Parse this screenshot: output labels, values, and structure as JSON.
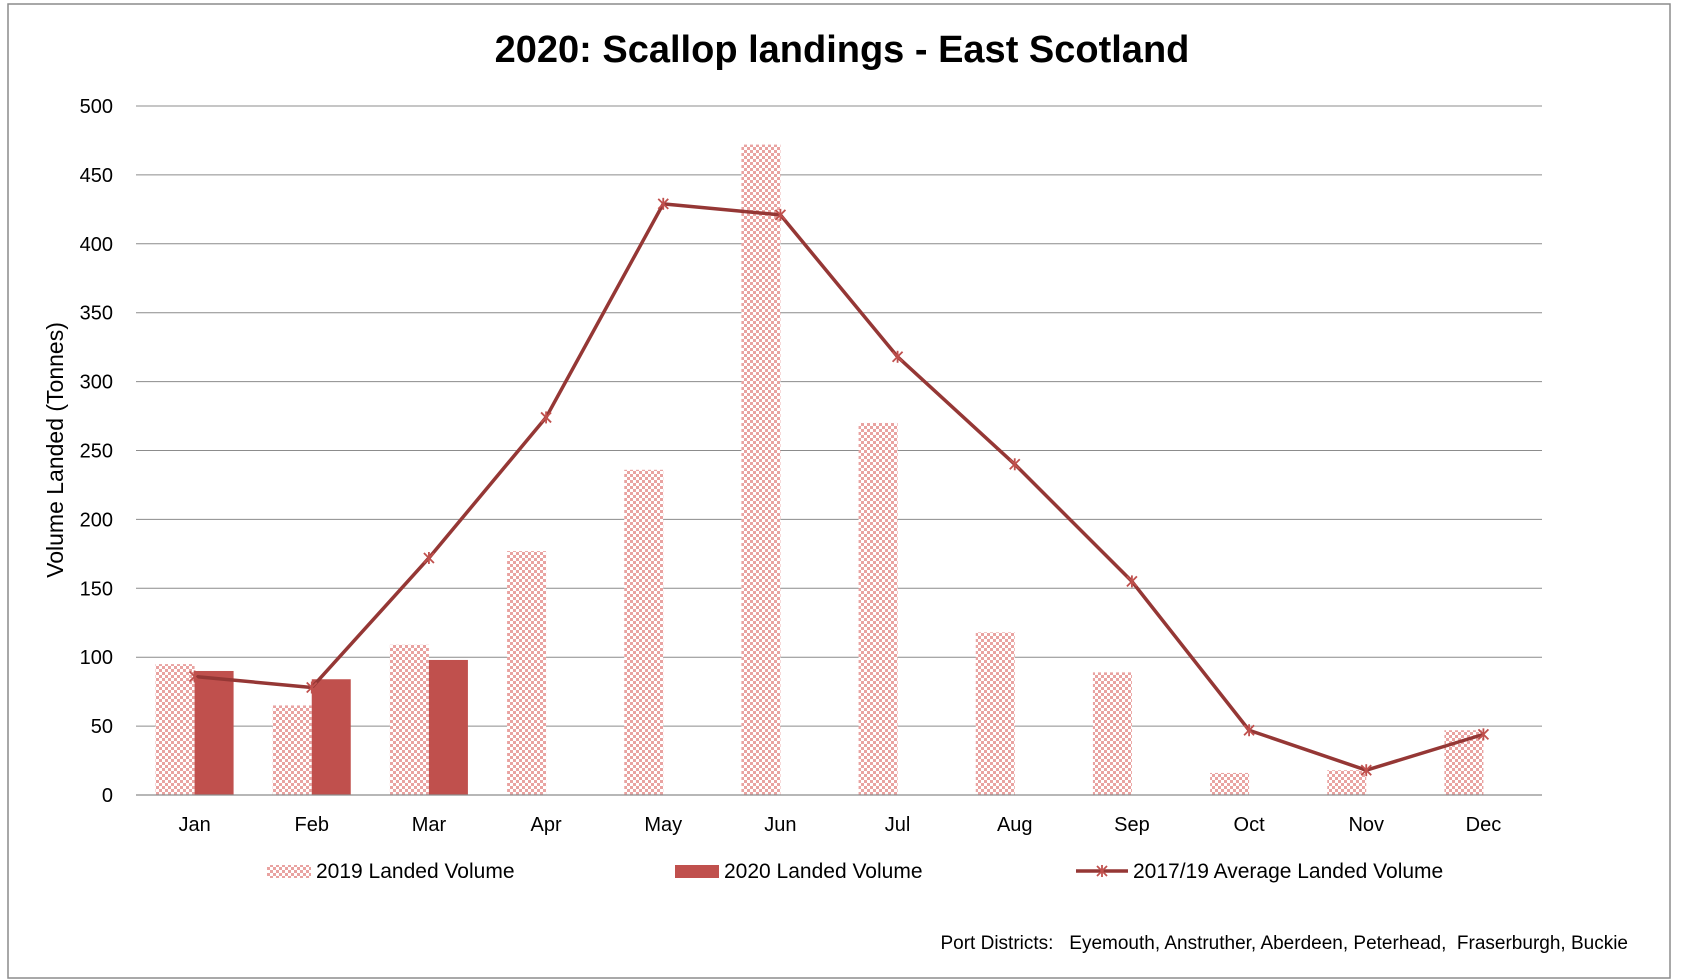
{
  "chart_data": {
    "type": "bar",
    "title": "2020: Scallop landings - East Scotland",
    "ylabel": "Volume Landed (Tonnes)",
    "xlabel": "",
    "ylim": [
      0,
      500
    ],
    "yticks": [
      "0",
      "50",
      "100",
      "150",
      "200",
      "250",
      "300",
      "350",
      "400",
      "450",
      "500"
    ],
    "grid": "horizontal",
    "legend_position": "bottom",
    "categories": [
      "Jan",
      "Feb",
      "Mar",
      "Apr",
      "May",
      "Jun",
      "Jul",
      "Aug",
      "Sep",
      "Oct",
      "Nov",
      "Dec"
    ],
    "series": [
      {
        "name": "2019  Landed Volume",
        "type": "bar",
        "style": "checkered",
        "color": "#f2b8b8",
        "values": [
          95,
          65,
          109,
          177,
          236,
          472,
          270,
          118,
          89,
          16,
          18,
          47
        ]
      },
      {
        "name": "2020 Landed Volume",
        "type": "bar",
        "style": "solid",
        "color": "#c0504d",
        "values": [
          90,
          84,
          98,
          null,
          null,
          null,
          null,
          null,
          null,
          null,
          null,
          null
        ]
      },
      {
        "name": "2017/19 Average Landed Volume",
        "type": "line",
        "marker": "star",
        "color": "#953735",
        "values": [
          86,
          78,
          172,
          274,
          429,
          421,
          318,
          240,
          155,
          47,
          18,
          44
        ]
      }
    ],
    "footnote": "Port Districts:   Eyemouth, Anstruther, Aberdeen, Peterhead,  Fraserburgh, Buckie"
  }
}
